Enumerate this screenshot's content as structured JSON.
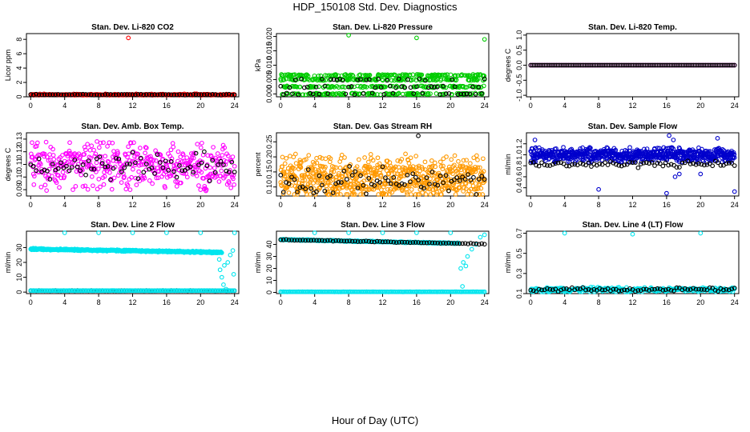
{
  "title": "HDP_150108  Std. Dev. Diagnostics",
  "xlabel": "Hour of Day (UTC)",
  "chart_data": [
    {
      "type": "scatter",
      "title": "Stan. Dev. Li-820 CO2",
      "ylabel": "Licor ppm",
      "xlim": [
        -0.5,
        24.5
      ],
      "ylim": [
        0,
        8.8
      ],
      "xticks": [
        0,
        4,
        8,
        12,
        16,
        20,
        24
      ],
      "xtick_labels": [
        "0",
        "4",
        "8",
        "12",
        "16",
        "20",
        "24"
      ],
      "yticks": [
        0,
        2,
        4,
        6,
        8
      ],
      "ytick_labels": [
        "0",
        "2",
        "4",
        "6",
        "8"
      ],
      "series": [
        {
          "color": "#ff0000",
          "base": 0.3,
          "spread": 0.12,
          "n": 200,
          "extra": [
            [
              11.5,
              8.2
            ]
          ]
        },
        {
          "color": "#000000",
          "base": 0.3,
          "spread": 0.08,
          "n": 75
        }
      ]
    },
    {
      "type": "scatter",
      "title": "Stan. Dev. Li-820 Pressure",
      "ylabel": "kPa",
      "xlim": [
        -0.5,
        24.5
      ],
      "ylim": [
        -0.001,
        0.021
      ],
      "xticks": [
        0,
        4,
        8,
        12,
        16,
        20,
        24
      ],
      "xtick_labels": [
        "0",
        "4",
        "8",
        "12",
        "16",
        "20",
        "24"
      ],
      "yticks": [
        0,
        0.005,
        0.01,
        0.015,
        0.02
      ],
      "ytick_labels": [
        "0.000",
        "0.005",
        "0.010",
        "0.015",
        "0.020"
      ],
      "series": [
        {
          "color": "#00cc00",
          "levels": [
            0.0,
            0.0025,
            0.005,
            0.0065
          ],
          "n": 550,
          "extra": [
            [
              8,
              0.0205
            ],
            [
              16,
              0.0195
            ],
            [
              24,
              0.019
            ]
          ]
        },
        {
          "color": "#000000",
          "levels": [
            0.0,
            0.0025,
            0.005
          ],
          "n": 70
        }
      ]
    },
    {
      "type": "scatter",
      "title": "Stan. Dev. Li-820 Temp.",
      "ylabel": "degrees C",
      "xlim": [
        -0.5,
        24.5
      ],
      "ylim": [
        -1.05,
        1.05
      ],
      "xticks": [
        0,
        4,
        8,
        12,
        16,
        20,
        24
      ],
      "xtick_labels": [
        "0",
        "4",
        "8",
        "12",
        "16",
        "20",
        "24"
      ],
      "yticks": [
        -1,
        -0.5,
        0,
        0.5,
        1
      ],
      "ytick_labels": [
        "-1.0",
        "-0.5",
        "0.0",
        "0.5",
        "1.0"
      ],
      "series": [
        {
          "color": "#ff00ff",
          "base": 0,
          "spread": 0,
          "n": 120
        },
        {
          "color": "#000000",
          "base": 0,
          "spread": 0,
          "n": 120
        }
      ]
    },
    {
      "type": "scatter",
      "title": "Stan. Dev. Amb. Box Temp.",
      "ylabel": "degrees C",
      "xlim": [
        -0.5,
        24.5
      ],
      "ylim": [
        0.085,
        0.135
      ],
      "xticks": [
        0,
        4,
        8,
        12,
        16,
        20,
        24
      ],
      "xtick_labels": [
        "0",
        "4",
        "8",
        "12",
        "16",
        "20",
        "24"
      ],
      "yticks": [
        0.09,
        0.1,
        0.11,
        0.12,
        0.13
      ],
      "ytick_labels": [
        "0.09",
        "0.10",
        "0.11",
        "0.12",
        "0.13"
      ],
      "series": [
        {
          "color": "#ff00ff",
          "base": 0.109,
          "spread": 0.02,
          "n": 450
        },
        {
          "color": "#000000",
          "base": 0.109,
          "spread": 0.012,
          "n": 75
        }
      ]
    },
    {
      "type": "scatter",
      "title": "Stan. Dev. Gas Stream RH",
      "ylabel": "percent",
      "xlim": [
        -0.5,
        24.5
      ],
      "ylim": [
        0.07,
        0.28
      ],
      "xticks": [
        0,
        4,
        8,
        12,
        16,
        20,
        24
      ],
      "xtick_labels": [
        "0",
        "4",
        "8",
        "12",
        "16",
        "20",
        "24"
      ],
      "yticks": [
        0.1,
        0.15,
        0.2,
        0.25
      ],
      "ytick_labels": [
        "0.10",
        "0.15",
        "0.20",
        "0.25"
      ],
      "series": [
        {
          "color": "#ff9900",
          "base": 0.13,
          "spread": 0.08,
          "n": 700
        },
        {
          "color": "#000000",
          "base": 0.12,
          "spread": 0.05,
          "n": 75,
          "extra": [
            [
              16.2,
              0.27
            ]
          ]
        }
      ]
    },
    {
      "type": "scatter",
      "title": "Stan. Dev. Sample Flow",
      "ylabel": "ml/min",
      "xlim": [
        -0.5,
        24.5
      ],
      "ylim": [
        0.25,
        1.4
      ],
      "xticks": [
        0,
        4,
        8,
        12,
        16,
        20,
        24
      ],
      "xtick_labels": [
        "0",
        "4",
        "8",
        "12",
        "16",
        "20",
        "24"
      ],
      "yticks": [
        0.4,
        0.6,
        0.8,
        1.0,
        1.2
      ],
      "ytick_labels": [
        "0.4",
        "0.6",
        "0.8",
        "1.0",
        "1.2"
      ],
      "series": [
        {
          "color": "#0000cc",
          "base": 1.0,
          "spread": 0.14,
          "n": 700,
          "extra": [
            [
              0.5,
              1.27
            ],
            [
              8,
              0.37
            ],
            [
              16,
              0.3
            ],
            [
              16.3,
              1.35
            ],
            [
              16.8,
              1.27
            ],
            [
              17,
              0.6
            ],
            [
              17.5,
              0.65
            ],
            [
              20,
              0.65
            ],
            [
              22,
              1.3
            ],
            [
              24,
              0.33
            ]
          ]
        },
        {
          "color": "#000000",
          "base": 0.83,
          "spread": 0.07,
          "n": 75
        }
      ]
    },
    {
      "type": "scatter",
      "title": "Stan. Dev. Line 2 Flow",
      "ylabel": "ml/min",
      "xlim": [
        -0.5,
        24.5
      ],
      "ylim": [
        -1,
        41
      ],
      "xticks": [
        0,
        4,
        8,
        12,
        16,
        20,
        24
      ],
      "xtick_labels": [
        "0",
        "4",
        "8",
        "12",
        "16",
        "20",
        "24"
      ],
      "yticks": [
        0,
        10,
        20,
        30
      ],
      "ytick_labels": [
        "0",
        "10",
        "20",
        "30"
      ],
      "series": [
        {
          "color": "#00e5ee",
          "base": 29,
          "slope": -0.1,
          "spread": 0.6,
          "n": 600,
          "x_max": 22.5,
          "extra": [
            [
              4,
              40
            ],
            [
              8,
              40
            ],
            [
              12,
              40
            ],
            [
              16,
              40
            ],
            [
              20,
              40
            ],
            [
              24,
              40
            ],
            [
              22.3,
              15
            ],
            [
              22.5,
              10
            ],
            [
              22.7,
              5
            ],
            [
              23.0,
              2
            ],
            [
              23.2,
              20
            ],
            [
              23.5,
              25
            ],
            [
              23.8,
              28
            ],
            [
              23.9,
              12
            ],
            [
              22.8,
              18
            ],
            [
              22.2,
              22
            ]
          ]
        },
        {
          "color": "#000000",
          "base": 1,
          "spread": 0.1,
          "n": 75
        },
        {
          "color": "#00e5ee",
          "base": 1,
          "spread": 0.1,
          "n": 160
        }
      ]
    },
    {
      "type": "scatter",
      "title": "Stan. Dev. Line 3 Flow",
      "ylabel": "ml/min",
      "xlim": [
        -0.5,
        24.5
      ],
      "ylim": [
        -1,
        51
      ],
      "xticks": [
        0,
        4,
        8,
        12,
        16,
        20,
        24
      ],
      "xtick_labels": [
        "0",
        "4",
        "8",
        "12",
        "16",
        "20",
        "24"
      ],
      "yticks": [
        0,
        10,
        20,
        30,
        40
      ],
      "ytick_labels": [
        "0",
        "10",
        "20",
        "30",
        "40"
      ],
      "series": [
        {
          "color": "#00e5ee",
          "base": 44,
          "slope": -0.15,
          "spread": 0.5,
          "n": 500,
          "x_max": 21,
          "extra": [
            [
              4,
              50
            ],
            [
              8,
              50
            ],
            [
              12,
              50
            ],
            [
              16,
              50
            ],
            [
              20,
              50
            ],
            [
              24,
              48
            ],
            [
              21.2,
              20
            ],
            [
              21.5,
              25
            ],
            [
              21.8,
              22
            ],
            [
              22,
              30
            ],
            [
              22.5,
              36
            ],
            [
              23,
              40
            ],
            [
              21.4,
              5
            ],
            [
              23.5,
              46
            ]
          ]
        },
        {
          "color": "#000000",
          "base": 44,
          "slope": -0.15,
          "spread": 0.4,
          "n": 75
        },
        {
          "color": "#00e5ee",
          "base": 0.5,
          "spread": 0.1,
          "n": 160
        }
      ]
    },
    {
      "type": "scatter",
      "title": "Stan. Dev. Line 4 (LT) Flow",
      "ylabel": "ml/min",
      "xlim": [
        -0.5,
        24.5
      ],
      "ylim": [
        0.1,
        0.72
      ],
      "xticks": [
        0,
        4,
        8,
        12,
        16,
        20,
        24
      ],
      "xtick_labels": [
        "0",
        "4",
        "8",
        "12",
        "16",
        "20",
        "24"
      ],
      "yticks": [
        0.1,
        0.3,
        0.5,
        0.7
      ],
      "ytick_labels": [
        "0.1",
        "0.3",
        "0.5",
        "0.7"
      ],
      "series": [
        {
          "color": "#00e5ee",
          "base": 0.14,
          "spread": 0.025,
          "n": 350,
          "extra": [
            [
              4,
              0.7
            ],
            [
              12,
              0.69
            ],
            [
              20,
              0.7
            ]
          ]
        },
        {
          "color": "#000000",
          "base": 0.14,
          "spread": 0.02,
          "n": 75
        }
      ]
    }
  ]
}
